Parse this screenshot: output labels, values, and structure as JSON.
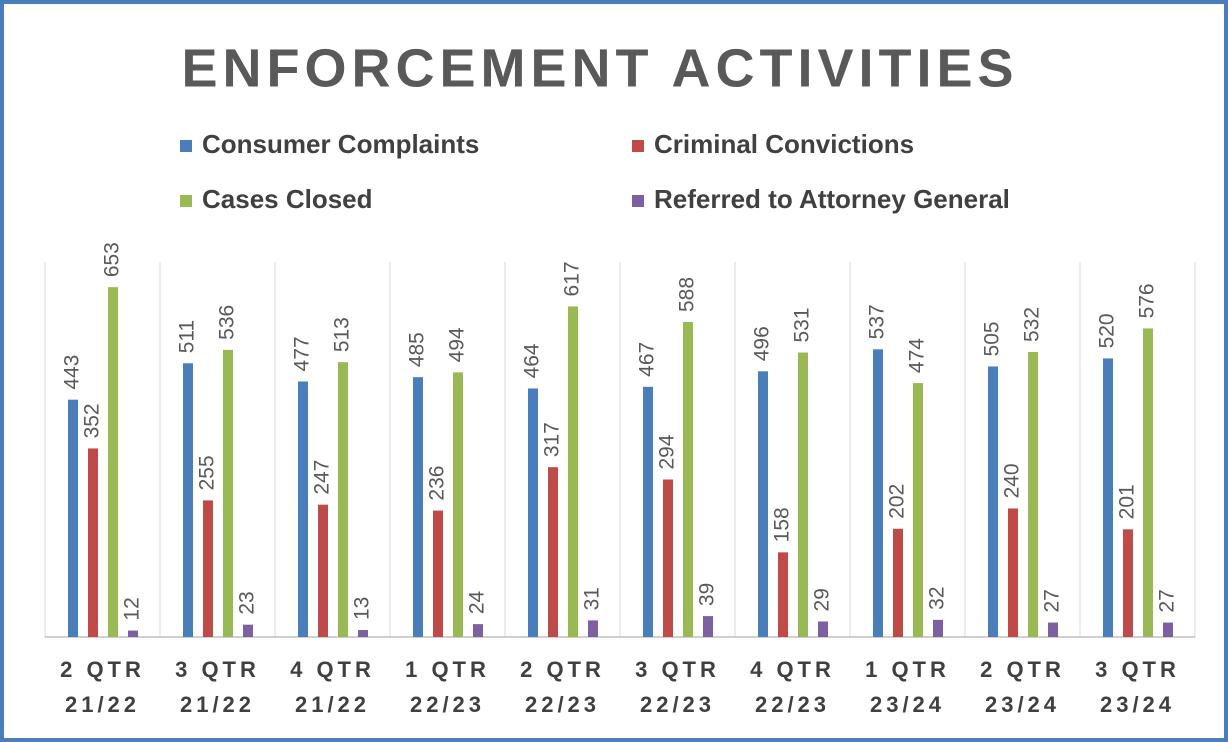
{
  "chart_data": {
    "type": "bar",
    "title": "ENFORCEMENT ACTIVITIES",
    "categories": [
      "2 QTR\n21/22",
      "3 QTR\n21/22",
      "4 QTR\n21/22",
      "1 QTR\n22/23",
      "2 QTR\n22/23",
      "3 QTR\n22/23",
      "4 QTR\n22/23",
      "1 QTR\n23/24",
      "2 QTR\n23/24",
      "3 QTR\n23/24"
    ],
    "series": [
      {
        "name": "Consumer Complaints",
        "color": "#4a7ebb",
        "values": [
          443,
          511,
          477,
          485,
          464,
          467,
          496,
          537,
          505,
          520
        ]
      },
      {
        "name": "Criminal Convictions",
        "color": "#be4b48",
        "values": [
          352,
          255,
          247,
          236,
          317,
          294,
          158,
          202,
          240,
          201
        ]
      },
      {
        "name": "Cases Closed",
        "color": "#98b954",
        "values": [
          653,
          536,
          513,
          494,
          617,
          588,
          531,
          474,
          532,
          576
        ]
      },
      {
        "name": "Referred to Attorney General",
        "color": "#7d60a0",
        "values": [
          12,
          23,
          13,
          24,
          31,
          39,
          29,
          32,
          27,
          27
        ]
      }
    ],
    "ylim": [
      0,
      700
    ]
  }
}
